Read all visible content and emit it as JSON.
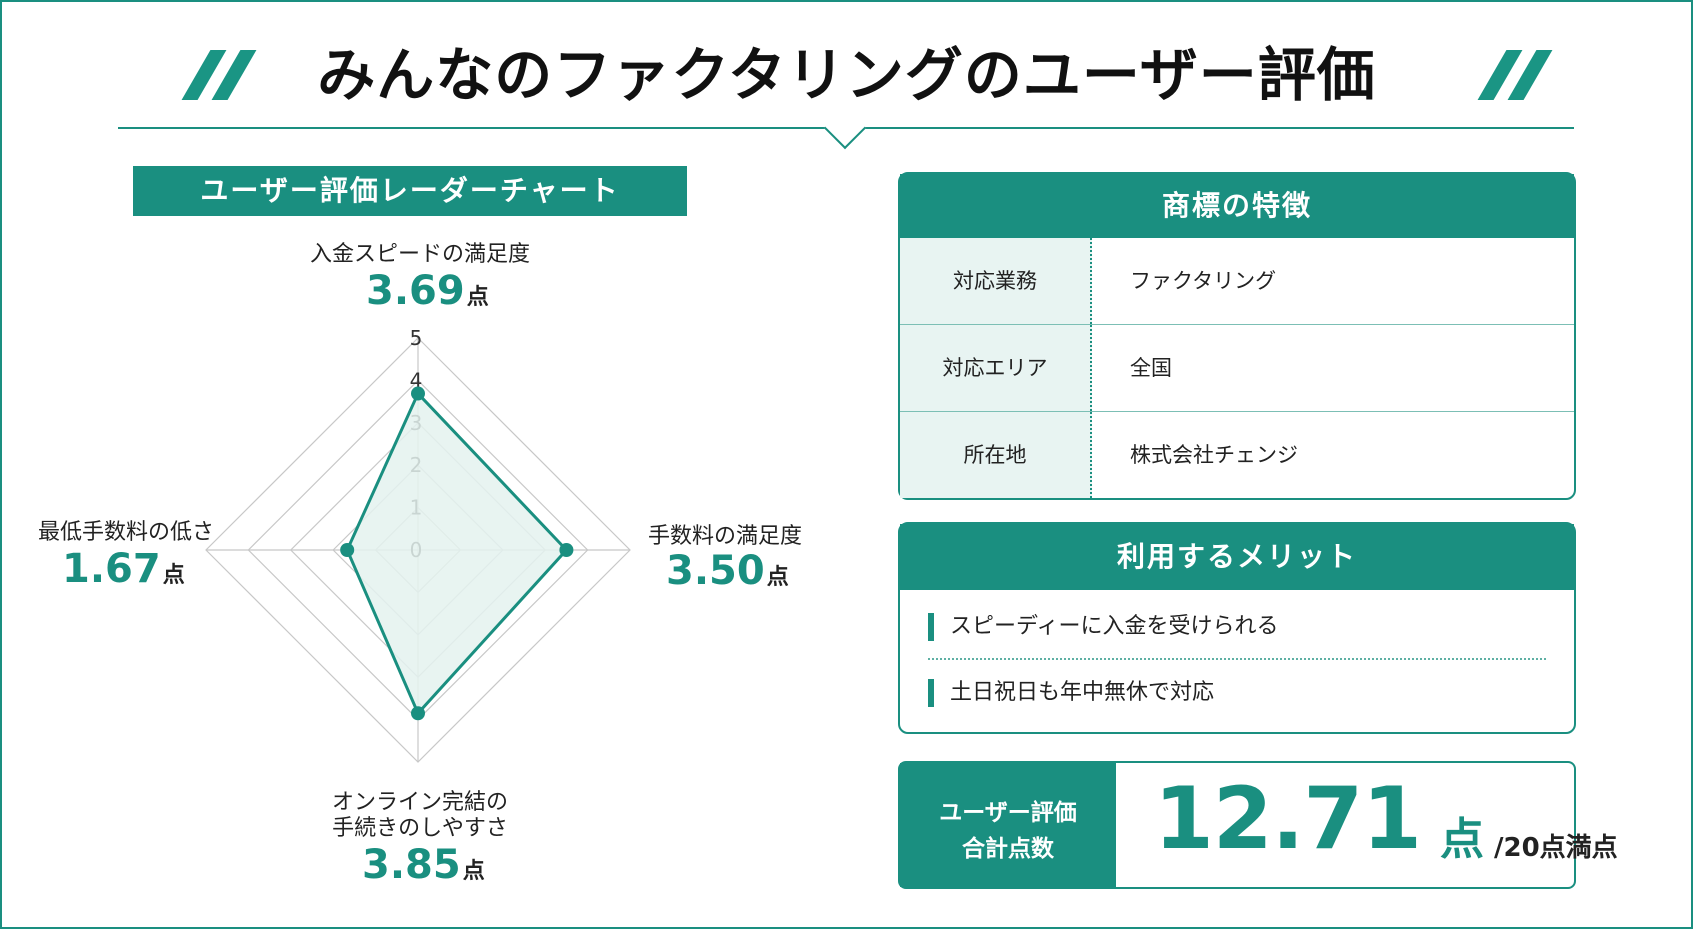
{
  "title": "みんなのファクタリングのユーザー評価",
  "chart_heading": "ユーザー評価レーダーチャート",
  "score_unit": "点",
  "chart_data": {
    "type": "radar",
    "title": "ユーザー評価レーダーチャート",
    "axes": [
      "入金スピードの満足度",
      "手数料の満足度",
      "オンライン完結の手続きのしやすさ",
      "最低手数料の低さ"
    ],
    "values": [
      3.69,
      3.5,
      3.85,
      1.67
    ],
    "value_labels": [
      "3.69",
      "3.50",
      "3.85",
      "1.67"
    ],
    "range": [
      0,
      5
    ],
    "ticks": [
      "0",
      "1",
      "2",
      "3",
      "4",
      "5"
    ],
    "colors": {
      "line": "#1a8f80",
      "fill": "#e4f2ef",
      "grid": "#c8c8c8"
    }
  },
  "axis_text": {
    "top": "入金スピードの満足度",
    "right": "手数料の満足度",
    "bottom_line1": "オンライン完結の",
    "bottom_line2": "手続きのしやすさ",
    "left": "最低手数料の低さ"
  },
  "features": {
    "heading": "商標の特徴",
    "rows": [
      {
        "key": "対応業務",
        "value": "ファクタリング"
      },
      {
        "key": "対応エリア",
        "value": "全国"
      },
      {
        "key": "所在地",
        "value": "株式会社チェンジ"
      }
    ]
  },
  "merits": {
    "heading": "利用するメリット",
    "items": [
      "スピーディーに入金を受けられる",
      "土日祝日も年中無休で対応"
    ]
  },
  "total": {
    "label_line1": "ユーザー評価",
    "label_line2": "合計点数",
    "value": "12.71",
    "unit": "点",
    "max": "/20点満点"
  },
  "accent_color": "#1a8f80"
}
